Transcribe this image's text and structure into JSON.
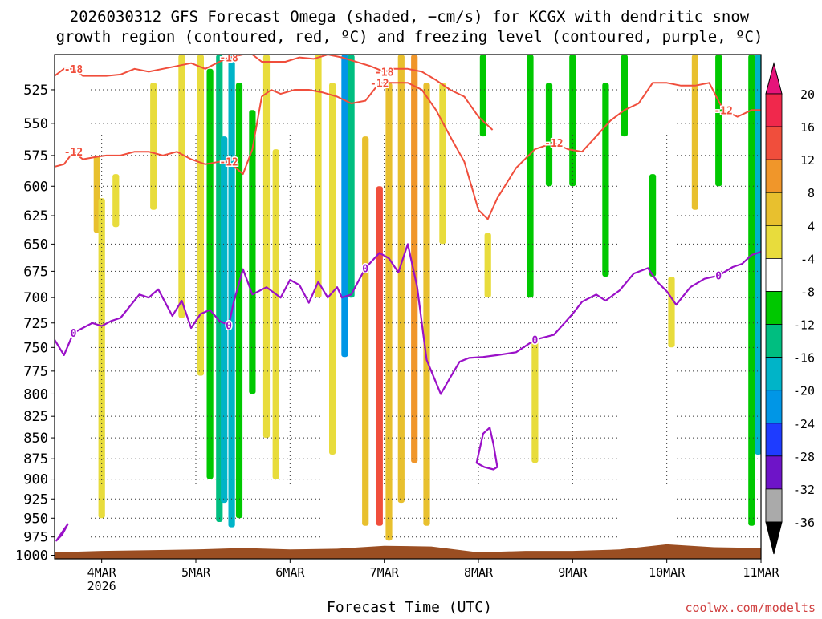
{
  "chart_data": {
    "type": "heatmap",
    "title_line1": "2026030312 GFS Forecast Omega (shaded, −cm/s) for KCGX with dendritic snow",
    "title_line2": "growth region (contoured, red, ºC) and freezing level (contoured, purple, ºC)",
    "xlabel": "Forecast Time (UTC)",
    "ylabel": "",
    "credit": "coolwx.com/modelts",
    "x_ticks": [
      {
        "t": 0.5,
        "label": "4MAR",
        "sublabel": "2026"
      },
      {
        "t": 1.5,
        "label": "5MAR"
      },
      {
        "t": 2.5,
        "label": "6MAR"
      },
      {
        "t": 3.5,
        "label": "7MAR"
      },
      {
        "t": 4.5,
        "label": "8MAR"
      },
      {
        "t": 5.5,
        "label": "9MAR"
      },
      {
        "t": 6.5,
        "label": "10MAR"
      },
      {
        "t": 7.5,
        "label": "11MAR"
      }
    ],
    "x_range_days": [
      0,
      7.5
    ],
    "y_levels": [
      525,
      550,
      575,
      600,
      625,
      650,
      675,
      700,
      725,
      750,
      775,
      800,
      825,
      850,
      875,
      900,
      925,
      950,
      975,
      1000
    ],
    "y_range_hpa": [
      500,
      1005
    ],
    "y_scale": "log",
    "grid": true,
    "colorbar": {
      "labels": [
        "20",
        "16",
        "12",
        "8",
        "4",
        "-4",
        "-8",
        "-12",
        "-16",
        "-20",
        "-24",
        "-28",
        "-32",
        "-36"
      ],
      "bins": [
        {
          "from": 16,
          "to": 20,
          "color": "#f0284c"
        },
        {
          "from": 12,
          "to": 16,
          "color": "#f04e3c"
        },
        {
          "from": 8,
          "to": 12,
          "color": "#f0962a"
        },
        {
          "from": 4,
          "to": 8,
          "color": "#e8c02e"
        },
        {
          "from": 0,
          "to": 4,
          "color": "#e8dc3c"
        },
        {
          "from": -4,
          "to": 4,
          "color": "#ffffff"
        },
        {
          "from": -8,
          "to": -4,
          "color": "#00c800"
        },
        {
          "from": -12,
          "to": -8,
          "color": "#00be80"
        },
        {
          "from": -16,
          "to": -12,
          "color": "#00b4c8"
        },
        {
          "from": -20,
          "to": -16,
          "color": "#0096e6"
        },
        {
          "from": -24,
          "to": -20,
          "color": "#1e3cff"
        },
        {
          "from": -28,
          "to": -24,
          "color": "#6e14c8"
        },
        {
          "from": -32,
          "to": -28,
          "color": "#a000c8"
        },
        {
          "from": -36,
          "to": -32,
          "color": "#aaaaaa"
        }
      ],
      "overflow_top": "#e6147a",
      "underflow_bottom": "#000000"
    },
    "freezing_level_0C": {
      "label": "0",
      "color": "#9a10c8",
      "x": [
        0.0,
        0.1,
        0.2,
        0.4,
        0.5,
        0.6,
        0.7,
        0.9,
        1.0,
        1.1,
        1.25,
        1.35,
        1.45,
        1.55,
        1.65,
        1.75,
        1.85,
        1.9,
        2.0,
        2.1,
        2.25,
        2.4,
        2.5,
        2.6,
        2.7,
        2.8,
        2.9,
        3.0,
        3.05,
        3.15,
        3.3,
        3.45,
        3.55,
        3.65,
        3.75,
        3.85,
        3.95,
        4.1,
        4.2,
        4.3,
        4.4,
        4.55,
        4.7,
        4.9,
        5.1,
        5.3,
        5.5,
        5.6,
        5.75,
        5.85,
        6.0,
        6.15,
        6.3,
        6.4,
        6.5,
        6.6,
        6.75,
        6.9,
        7.05,
        7.2,
        7.3,
        7.4,
        7.5
      ],
      "values": [
        742,
        758,
        735,
        725,
        728,
        723,
        720,
        697,
        700,
        692,
        718,
        703,
        730,
        716,
        712,
        723,
        727,
        705,
        673,
        697,
        690,
        700,
        683,
        688,
        705,
        685,
        700,
        690,
        700,
        697,
        672,
        658,
        663,
        676,
        650,
        690,
        763,
        800,
        782,
        765,
        761,
        760,
        758,
        755,
        742,
        737,
        716,
        704,
        697,
        703,
        693,
        677,
        672,
        685,
        694,
        707,
        690,
        682,
        679,
        671,
        668,
        660,
        657
      ]
    },
    "freezing_level_closed_contours": [
      {
        "x": [
          4.48,
          4.55,
          4.62,
          4.66,
          4.7,
          4.66,
          4.56,
          4.48
        ],
        "values": [
          880,
          845,
          838,
          858,
          885,
          888,
          885,
          880
        ]
      },
      {
        "x": [
          0.02,
          0.1,
          0.14,
          0.08,
          0.02
        ],
        "values": [
          980,
          965,
          958,
          972,
          980
        ]
      }
    ],
    "dgz_isotherms": [
      {
        "label": "-12",
        "color": "#f04e3c",
        "x": [
          0.0,
          0.1,
          0.2,
          0.3,
          0.45,
          0.55,
          0.7,
          0.85,
          1.0,
          1.15,
          1.3,
          1.45,
          1.6,
          1.75,
          1.85,
          2.0,
          2.1,
          2.2,
          2.3,
          2.4,
          2.55,
          2.7,
          2.85,
          3.0,
          3.15,
          3.3,
          3.45,
          3.6,
          3.75,
          3.9,
          4.05,
          4.2,
          4.35,
          4.5,
          4.6,
          4.7,
          4.9,
          5.1,
          5.3,
          5.45,
          5.6,
          5.75,
          5.9,
          6.05,
          6.2,
          6.35,
          6.5,
          6.65,
          6.8,
          6.95,
          7.1,
          7.25,
          7.4,
          7.5
        ],
        "values": [
          584,
          582,
          572,
          578,
          576,
          575,
          575,
          572,
          572,
          575,
          572,
          578,
          582,
          580,
          580,
          590,
          570,
          530,
          525,
          528,
          525,
          525,
          527,
          530,
          535,
          533,
          520,
          520,
          520,
          525,
          540,
          560,
          580,
          620,
          628,
          610,
          585,
          570,
          565,
          570,
          572,
          560,
          548,
          540,
          535,
          520,
          520,
          522,
          522,
          520,
          540,
          545,
          540,
          540
        ]
      },
      {
        "label": "-18",
        "color": "#f04e3c",
        "x": [
          0.0,
          0.1,
          0.2,
          0.3,
          0.4,
          0.55,
          0.7,
          0.85,
          1.0,
          1.15,
          1.3,
          1.45,
          1.6,
          1.75,
          1.85,
          2.0,
          2.1,
          2.2,
          2.3,
          2.45,
          2.6,
          2.75,
          2.9,
          3.05,
          3.2,
          3.35,
          3.5,
          3.6,
          3.75,
          3.9,
          4.05,
          4.2,
          4.35,
          4.5,
          4.65
        ],
        "values": [
          515,
          510,
          510,
          515,
          515,
          515,
          514,
          510,
          512,
          510,
          508,
          506,
          510,
          505,
          502,
          500,
          500,
          505,
          505,
          505,
          502,
          503,
          500,
          502,
          505,
          508,
          512,
          510,
          510,
          512,
          518,
          525,
          530,
          545,
          555
        ]
      }
    ],
    "omega_features": [
      {
        "x": 0.45,
        "p_top": 575,
        "p_bottom": 640,
        "value": 6
      },
      {
        "x": 0.5,
        "p_top": 610,
        "p_bottom": 950,
        "value": 4
      },
      {
        "x": 0.65,
        "p_top": 590,
        "p_bottom": 635,
        "value": 4
      },
      {
        "x": 1.05,
        "p_top": 520,
        "p_bottom": 620,
        "value": 4
      },
      {
        "x": 1.35,
        "p_top": 500,
        "p_bottom": 720,
        "value": 4
      },
      {
        "x": 1.55,
        "p_top": 500,
        "p_bottom": 780,
        "value": 4
      },
      {
        "x": 1.65,
        "p_top": 510,
        "p_bottom": 900,
        "value": -6
      },
      {
        "x": 1.75,
        "p_top": 500,
        "p_bottom": 955,
        "value": -10
      },
      {
        "x": 1.8,
        "p_top": 560,
        "p_bottom": 930,
        "value": -14
      },
      {
        "x": 1.88,
        "p_top": 500,
        "p_bottom": 962,
        "value": -12
      },
      {
        "x": 1.96,
        "p_top": 520,
        "p_bottom": 950,
        "value": -6
      },
      {
        "x": 2.1,
        "p_top": 540,
        "p_bottom": 800,
        "value": -6
      },
      {
        "x": 2.25,
        "p_top": 500,
        "p_bottom": 850,
        "value": 4
      },
      {
        "x": 2.35,
        "p_top": 570,
        "p_bottom": 900,
        "value": 4
      },
      {
        "x": 2.8,
        "p_top": 500,
        "p_bottom": 700,
        "value": 4
      },
      {
        "x": 2.95,
        "p_top": 520,
        "p_bottom": 870,
        "value": 4
      },
      {
        "x": 3.08,
        "p_top": 500,
        "p_bottom": 760,
        "value": -18
      },
      {
        "x": 3.15,
        "p_top": 500,
        "p_bottom": 700,
        "value": -8
      },
      {
        "x": 3.3,
        "p_top": 560,
        "p_bottom": 960,
        "value": 6
      },
      {
        "x": 3.45,
        "p_top": 600,
        "p_bottom": 960,
        "value": 16
      },
      {
        "x": 3.55,
        "p_top": 520,
        "p_bottom": 980,
        "value": 8
      },
      {
        "x": 3.68,
        "p_top": 500,
        "p_bottom": 930,
        "value": 6
      },
      {
        "x": 3.82,
        "p_top": 500,
        "p_bottom": 880,
        "value": 10
      },
      {
        "x": 3.95,
        "p_top": 520,
        "p_bottom": 960,
        "value": 8
      },
      {
        "x": 4.12,
        "p_top": 520,
        "p_bottom": 650,
        "value": 4
      },
      {
        "x": 4.55,
        "p_top": 500,
        "p_bottom": 560,
        "value": -6
      },
      {
        "x": 4.6,
        "p_top": 640,
        "p_bottom": 700,
        "value": 4
      },
      {
        "x": 5.05,
        "p_top": 500,
        "p_bottom": 700,
        "value": -6
      },
      {
        "x": 5.25,
        "p_top": 520,
        "p_bottom": 600,
        "value": -6
      },
      {
        "x": 5.1,
        "p_top": 740,
        "p_bottom": 880,
        "value": 4
      },
      {
        "x": 5.5,
        "p_top": 500,
        "p_bottom": 600,
        "value": -6
      },
      {
        "x": 5.85,
        "p_top": 520,
        "p_bottom": 680,
        "value": -6
      },
      {
        "x": 6.05,
        "p_top": 500,
        "p_bottom": 560,
        "value": -6
      },
      {
        "x": 6.35,
        "p_top": 590,
        "p_bottom": 680,
        "value": -6
      },
      {
        "x": 6.55,
        "p_top": 680,
        "p_bottom": 750,
        "value": 4
      },
      {
        "x": 6.8,
        "p_top": 500,
        "p_bottom": 620,
        "value": 8
      },
      {
        "x": 7.05,
        "p_top": 500,
        "p_bottom": 600,
        "value": -6
      },
      {
        "x": 7.4,
        "p_top": 500,
        "p_bottom": 960,
        "value": -6
      },
      {
        "x": 7.47,
        "p_top": 500,
        "p_bottom": 870,
        "value": -12
      }
    ],
    "terrain": {
      "color": "#9b4e22",
      "x": [
        0.0,
        0.5,
        1.0,
        1.5,
        2.0,
        2.5,
        3.0,
        3.5,
        4.0,
        4.5,
        5.0,
        5.5,
        6.0,
        6.5,
        7.0,
        7.5
      ],
      "surface_hpa": [
        996,
        994,
        993,
        992,
        990,
        992,
        991,
        987,
        988,
        996,
        994,
        994,
        992,
        985,
        989,
        990
      ]
    }
  }
}
